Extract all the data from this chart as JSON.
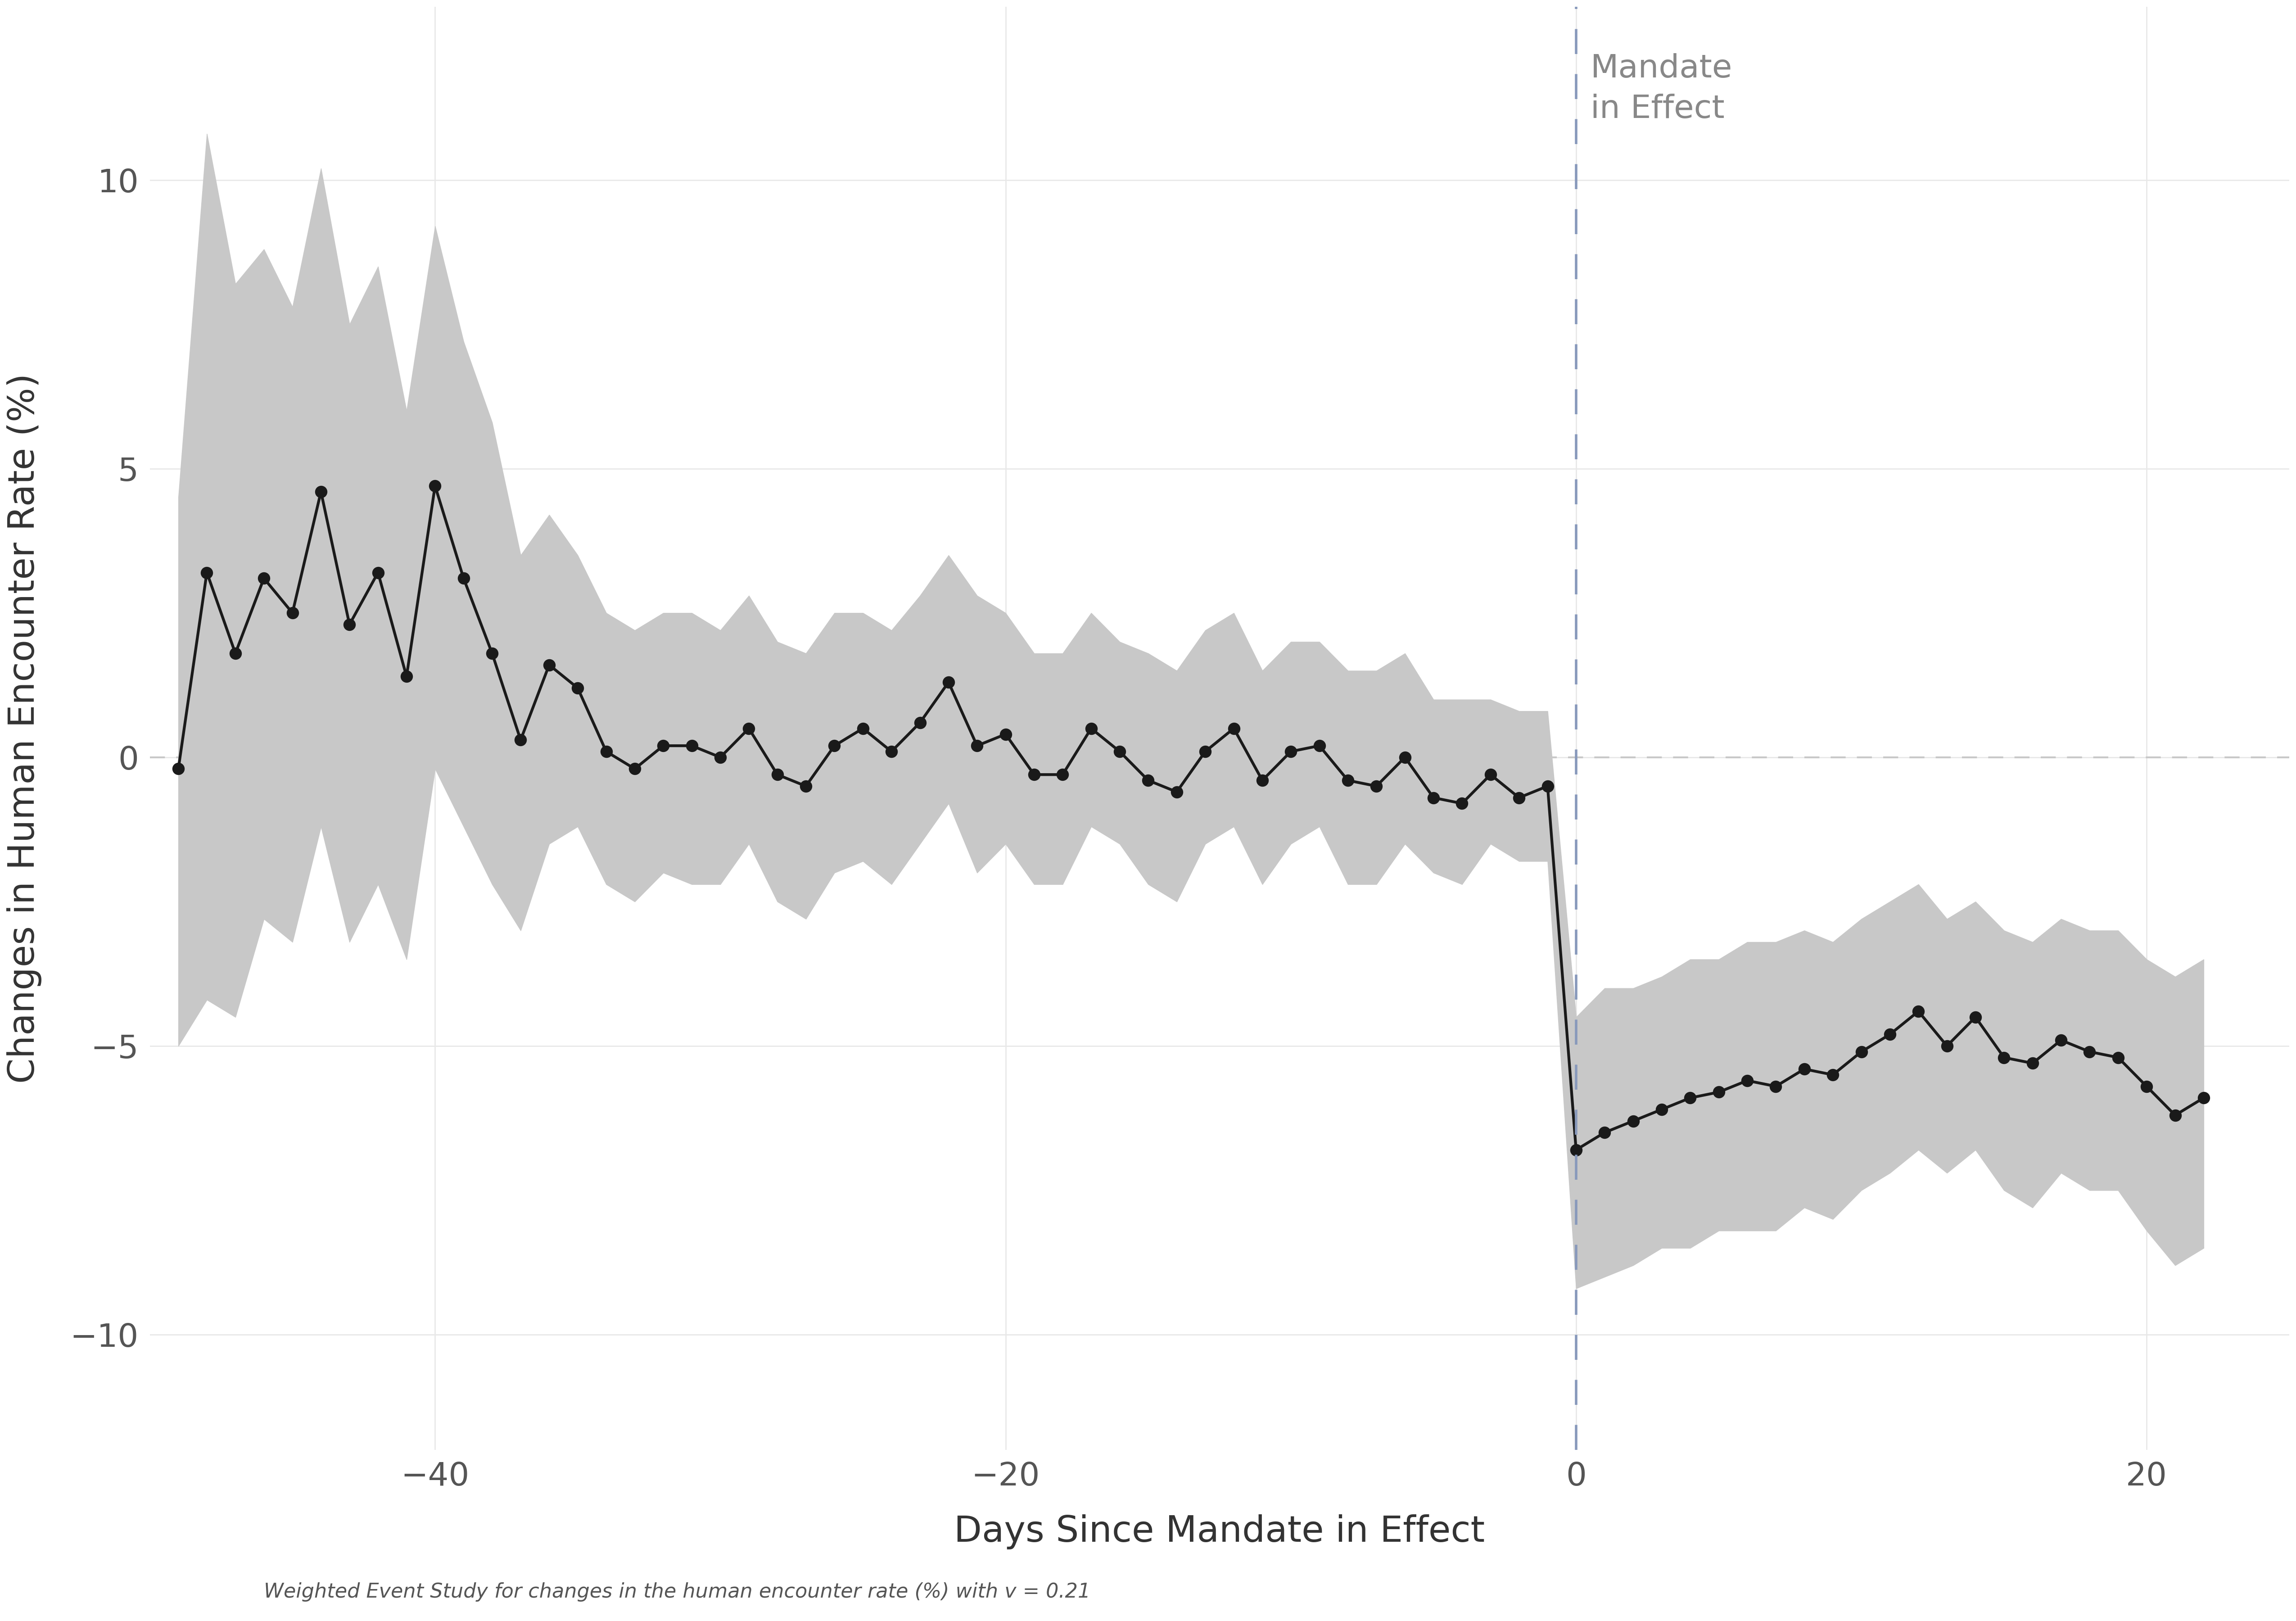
{
  "xlabel": "Days Since Mandate in Effect",
  "ylabel": "Changes in Human Encounter Rate (%)",
  "footnote": "Weighted Event Study for changes in the human encounter rate (%) with v = 0.21",
  "xlim": [
    -50,
    25
  ],
  "ylim": [
    -12,
    13
  ],
  "yticks": [
    -10,
    -5,
    0,
    5,
    10
  ],
  "xticks": [
    -40,
    -20,
    0,
    20
  ],
  "mandate_label": "Mandate\nin Effect",
  "mandate_x": 0,
  "background_color": "#ffffff",
  "grid_color": "#e8e8e8",
  "line_color": "#1a1a1a",
  "fill_color": "#c8c8c8",
  "mandate_line_color": "#8899bb",
  "zero_line_color": "#c8c8c8",
  "x": [
    -49,
    -48,
    -47,
    -46,
    -45,
    -44,
    -43,
    -42,
    -41,
    -40,
    -39,
    -38,
    -37,
    -36,
    -35,
    -34,
    -33,
    -32,
    -31,
    -30,
    -29,
    -28,
    -27,
    -26,
    -25,
    -24,
    -23,
    -22,
    -21,
    -20,
    -19,
    -18,
    -17,
    -16,
    -15,
    -14,
    -13,
    -12,
    -11,
    -10,
    -9,
    -8,
    -7,
    -6,
    -5,
    -4,
    -3,
    -2,
    -1,
    0,
    1,
    2,
    3,
    4,
    5,
    6,
    7,
    8,
    9,
    10,
    11,
    12,
    13,
    14,
    15,
    16,
    17,
    18,
    19,
    20,
    21,
    22
  ],
  "y": [
    -0.2,
    3.2,
    1.8,
    3.1,
    2.5,
    4.6,
    2.3,
    3.2,
    1.4,
    4.7,
    3.1,
    1.8,
    0.3,
    1.6,
    1.2,
    0.1,
    -0.2,
    0.2,
    0.2,
    0.0,
    0.5,
    -0.3,
    -0.5,
    0.2,
    0.5,
    0.1,
    0.6,
    1.3,
    0.2,
    0.4,
    -0.3,
    -0.3,
    0.5,
    0.1,
    -0.4,
    -0.6,
    0.1,
    0.5,
    -0.4,
    0.1,
    0.2,
    -0.4,
    -0.5,
    0.0,
    -0.7,
    -0.8,
    -0.3,
    -0.7,
    -0.5,
    -6.8,
    -6.5,
    -6.3,
    -6.1,
    -5.9,
    -5.8,
    -5.6,
    -5.7,
    -5.4,
    -5.5,
    -5.1,
    -4.8,
    -4.4,
    -5.0,
    -4.5,
    -5.2,
    -5.3,
    -4.9,
    -5.1,
    -5.2,
    -5.7,
    -6.2,
    -5.9
  ],
  "y_upper": [
    4.5,
    10.8,
    8.2,
    8.8,
    7.8,
    10.2,
    7.5,
    8.5,
    6.0,
    9.2,
    7.2,
    5.8,
    3.5,
    4.2,
    3.5,
    2.5,
    2.2,
    2.5,
    2.5,
    2.2,
    2.8,
    2.0,
    1.8,
    2.5,
    2.5,
    2.2,
    2.8,
    3.5,
    2.8,
    2.5,
    1.8,
    1.8,
    2.5,
    2.0,
    1.8,
    1.5,
    2.2,
    2.5,
    1.5,
    2.0,
    2.0,
    1.5,
    1.5,
    1.8,
    1.0,
    1.0,
    1.0,
    0.8,
    0.8,
    -4.5,
    -4.0,
    -4.0,
    -3.8,
    -3.5,
    -3.5,
    -3.2,
    -3.2,
    -3.0,
    -3.2,
    -2.8,
    -2.5,
    -2.2,
    -2.8,
    -2.5,
    -3.0,
    -3.2,
    -2.8,
    -3.0,
    -3.0,
    -3.5,
    -3.8,
    -3.5
  ],
  "y_lower": [
    -5.0,
    -4.2,
    -4.5,
    -2.8,
    -3.2,
    -1.2,
    -3.2,
    -2.2,
    -3.5,
    -0.2,
    -1.2,
    -2.2,
    -3.0,
    -1.5,
    -1.2,
    -2.2,
    -2.5,
    -2.0,
    -2.2,
    -2.2,
    -1.5,
    -2.5,
    -2.8,
    -2.0,
    -1.8,
    -2.2,
    -1.5,
    -0.8,
    -2.0,
    -1.5,
    -2.2,
    -2.2,
    -1.2,
    -1.5,
    -2.2,
    -2.5,
    -1.5,
    -1.2,
    -2.2,
    -1.5,
    -1.2,
    -2.2,
    -2.2,
    -1.5,
    -2.0,
    -2.2,
    -1.5,
    -1.8,
    -1.8,
    -9.2,
    -9.0,
    -8.8,
    -8.5,
    -8.5,
    -8.2,
    -8.2,
    -8.2,
    -7.8,
    -8.0,
    -7.5,
    -7.2,
    -6.8,
    -7.2,
    -6.8,
    -7.5,
    -7.8,
    -7.2,
    -7.5,
    -7.5,
    -8.2,
    -8.8,
    -8.5
  ]
}
